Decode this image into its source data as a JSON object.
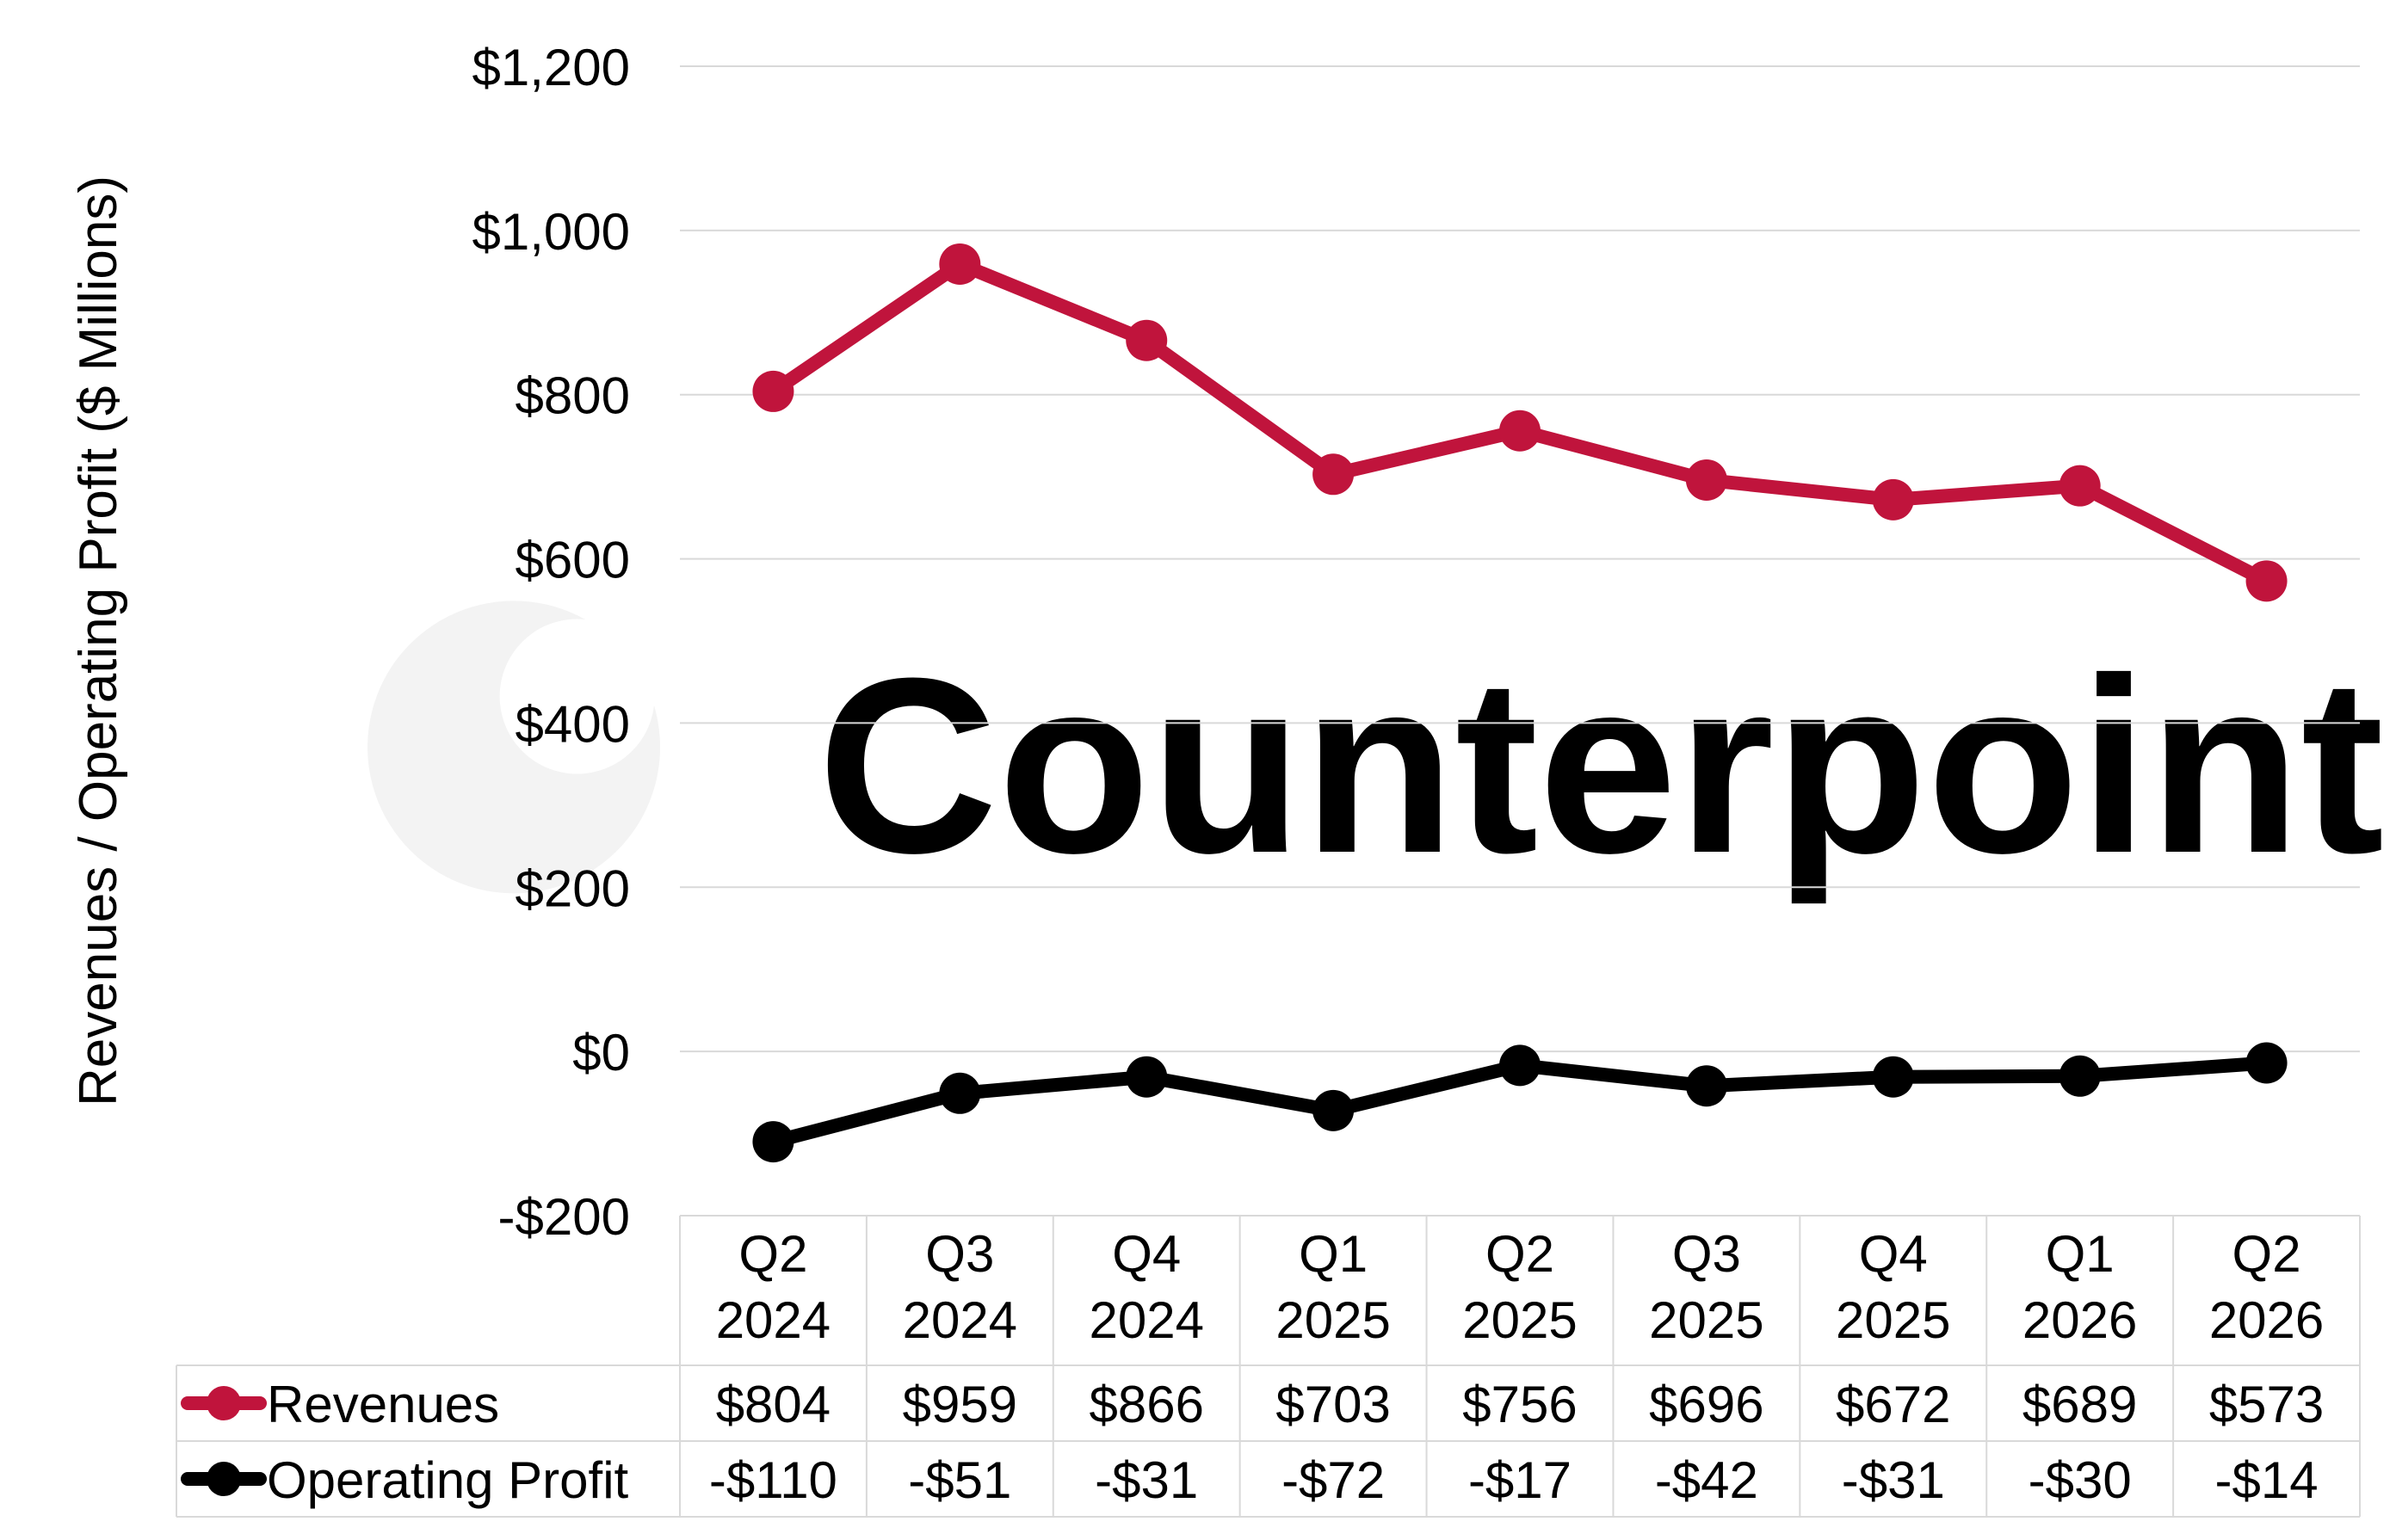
{
  "watermark": "Counterpoint",
  "colors": {
    "revenues": "#C0143C",
    "operating_profit": "#000000",
    "grid": "#D9D9D9",
    "watermark": "#F2F2F2"
  },
  "chart_data": {
    "type": "line",
    "ylabel": "Revenues / Operating Profit ($ Millions)",
    "ylim": [
      -200,
      1200
    ],
    "y_ticks": [
      -200,
      0,
      200,
      400,
      600,
      800,
      1000,
      1200
    ],
    "y_tick_labels": [
      "-$200",
      "$0",
      "$200",
      "$400",
      "$600",
      "$800",
      "$1,000",
      "$1,200"
    ],
    "grid": true,
    "categories": [
      [
        "Q2",
        "2024"
      ],
      [
        "Q3",
        "2024"
      ],
      [
        "Q4",
        "2024"
      ],
      [
        "Q1",
        "2025"
      ],
      [
        "Q2",
        "2025"
      ],
      [
        "Q3",
        "2025"
      ],
      [
        "Q4",
        "2025"
      ],
      [
        "Q1",
        "2026"
      ],
      [
        "Q2",
        "2026"
      ]
    ],
    "series": [
      {
        "name": "Revenues",
        "color": "#C0143C",
        "values": [
          804,
          959,
          866,
          703,
          756,
          696,
          672,
          689,
          573
        ],
        "labels": [
          "$804",
          "$959",
          "$866",
          "$703",
          "$756",
          "$696",
          "$672",
          "$689",
          "$573"
        ]
      },
      {
        "name": "Operating Profit",
        "color": "#000000",
        "values": [
          -110,
          -51,
          -31,
          -72,
          -17,
          -42,
          -31,
          -30,
          -14
        ],
        "labels": [
          "-$110",
          "-$51",
          "-$31",
          "-$72",
          "-$17",
          "-$42",
          "-$31",
          "-$30",
          "-$14"
        ]
      }
    ],
    "legend": "data-table-rows"
  }
}
